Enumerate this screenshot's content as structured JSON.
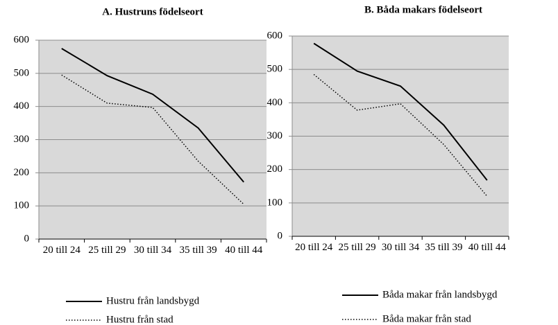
{
  "chart_data": [
    {
      "type": "line",
      "title": "A. Hustruns födelseort",
      "categories": [
        "20 till 24",
        "25 till 29",
        "30 till 34",
        "35 till 39",
        "40 till 44"
      ],
      "series": [
        {
          "name": "Hustru från landsbygd",
          "color": "#000000",
          "style": "solid",
          "values": [
            575,
            493,
            437,
            335,
            172
          ]
        },
        {
          "name": "Hustru från stad",
          "color": "#000000",
          "style": "dotted",
          "values": [
            495,
            410,
            397,
            235,
            105
          ]
        }
      ],
      "ylim": [
        0,
        600
      ],
      "yticks": [
        0,
        100,
        200,
        300,
        400,
        500,
        600
      ],
      "grid": true,
      "legend": "bottom"
    },
    {
      "type": "line",
      "title": "B. Båda makars födelseort",
      "categories": [
        "20 till 24",
        "25 till 29",
        "30 till 34",
        "35 till 39",
        "40 till 44"
      ],
      "series": [
        {
          "name": "Båda makar från landsbygd",
          "color": "#000000",
          "style": "solid",
          "values": [
            578,
            495,
            450,
            333,
            168
          ]
        },
        {
          "name": "Båda makar från stad",
          "color": "#000000",
          "style": "dotted",
          "values": [
            485,
            378,
            397,
            275,
            120
          ]
        }
      ],
      "ylim": [
        0,
        600
      ],
      "yticks": [
        0,
        100,
        200,
        300,
        400,
        500,
        600
      ],
      "grid": true,
      "legend": "bottom"
    }
  ]
}
